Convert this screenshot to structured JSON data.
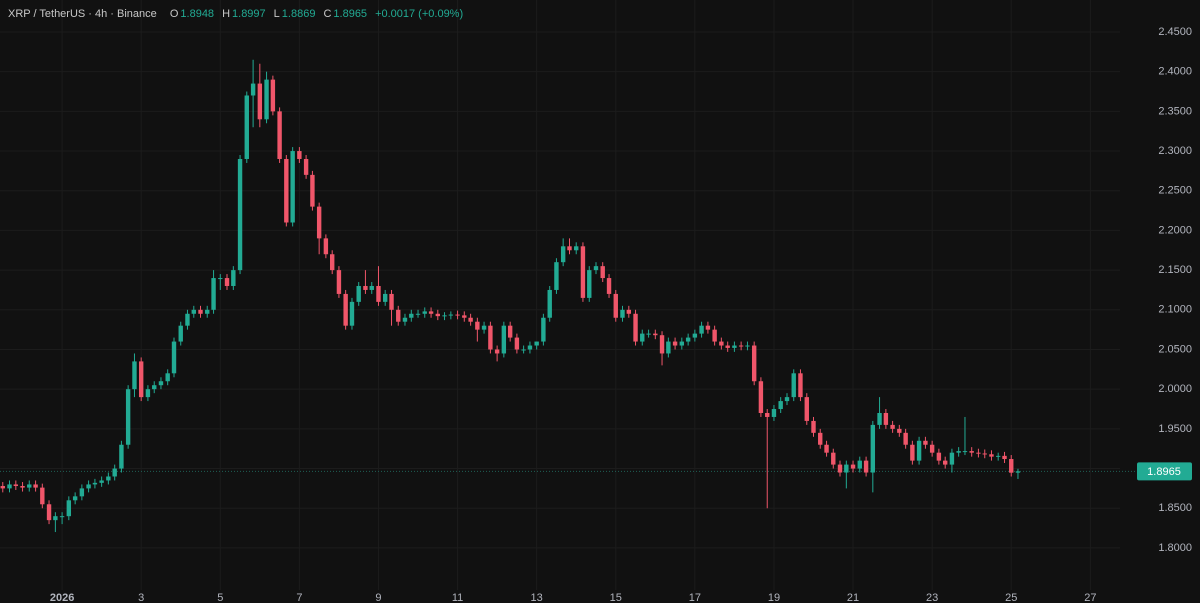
{
  "chart_data": {
    "type": "candlestick",
    "symbol": "XRP / TetherUS · 4h · Binance",
    "ohlc_legend": {
      "labels": [
        "O",
        "H",
        "L",
        "C"
      ],
      "values": [
        1.8948,
        1.8997,
        1.8869,
        1.8965
      ],
      "change": "+0.0017 (+0.09%)"
    },
    "x": [
      -0.5,
      -0.33,
      -0.17,
      0,
      0.17,
      0.33,
      0.5,
      0.67,
      0.83,
      1,
      1.17,
      1.33,
      1.5,
      1.67,
      1.83,
      2,
      2.17,
      2.33,
      2.5,
      2.67,
      2.83,
      3,
      3.17,
      3.33,
      3.5,
      3.67,
      3.83,
      4,
      4.17,
      4.33,
      4.5,
      4.67,
      4.83,
      5,
      5.17,
      5.33,
      5.5,
      5.67,
      5.83,
      6,
      6.17,
      6.33,
      6.5,
      6.67,
      6.83,
      7,
      7.17,
      7.33,
      7.5,
      7.67,
      7.83,
      8,
      8.17,
      8.33,
      8.5,
      8.67,
      8.83,
      9,
      9.17,
      9.33,
      9.5,
      9.67,
      9.83,
      10,
      10.17,
      10.33,
      10.5,
      10.67,
      10.83,
      11,
      11.17,
      11.33,
      11.5,
      11.67,
      11.83,
      12,
      12.17,
      12.33,
      12.5,
      12.67,
      12.83,
      13,
      13.17,
      13.33,
      13.5,
      13.67,
      13.83,
      14,
      14.17,
      14.33,
      14.5,
      14.67,
      14.83,
      15,
      15.17,
      15.33,
      15.5,
      15.67,
      15.83,
      16,
      16.17,
      16.33,
      16.5,
      16.67,
      16.83,
      17,
      17.17,
      17.33,
      17.5,
      17.67,
      17.83,
      18,
      18.17,
      18.33,
      18.5,
      18.67,
      18.83,
      19,
      19.17,
      19.33,
      19.5,
      19.67,
      19.83,
      20,
      20.17,
      20.33,
      20.5,
      20.67,
      20.83,
      21,
      21.17,
      21.33,
      21.5,
      21.67,
      21.83,
      22,
      22.17,
      22.33,
      22.5,
      22.67,
      22.83,
      23,
      23.17,
      23.33,
      23.5,
      23.67,
      23.83,
      24,
      24.17,
      24.33,
      24.5,
      24.67,
      24.83,
      25,
      25.17
    ],
    "series": [
      {
        "up_color": "#22ab94",
        "down_color": "#f0566a",
        "open": [
          1.878,
          1.875,
          1.88,
          1.878,
          1.876,
          1.88,
          1.876,
          1.855,
          1.835,
          1.84,
          1.84,
          1.86,
          1.865,
          1.875,
          1.88,
          1.882,
          1.885,
          1.89,
          1.9,
          1.93,
          2.0,
          2.035,
          1.99,
          2.0,
          2.005,
          2.01,
          2.02,
          2.06,
          2.08,
          2.095,
          2.1,
          2.095,
          2.1,
          2.14,
          2.14,
          2.13,
          2.15,
          2.29,
          2.37,
          2.385,
          2.34,
          2.39,
          2.35,
          2.29,
          2.21,
          2.3,
          2.29,
          2.27,
          2.23,
          2.19,
          2.17,
          2.15,
          2.12,
          2.08,
          2.11,
          2.13,
          2.125,
          2.13,
          2.11,
          2.12,
          2.1,
          2.085,
          2.09,
          2.095,
          2.095,
          2.098,
          2.095,
          2.092,
          2.093,
          2.094,
          2.093,
          2.09,
          2.085,
          2.075,
          2.08,
          2.05,
          2.045,
          2.08,
          2.065,
          2.05,
          2.05,
          2.055,
          2.06,
          2.09,
          2.125,
          2.16,
          2.18,
          2.175,
          2.18,
          2.115,
          2.15,
          2.155,
          2.14,
          2.12,
          2.09,
          2.1,
          2.095,
          2.06,
          2.07,
          2.07,
          2.068,
          2.045,
          2.06,
          2.055,
          2.06,
          2.065,
          2.07,
          2.08,
          2.075,
          2.06,
          2.055,
          2.052,
          2.055,
          2.054,
          2.055,
          2.01,
          1.97,
          1.965,
          1.975,
          1.985,
          1.99,
          2.02,
          1.99,
          1.96,
          1.945,
          1.93,
          1.92,
          1.905,
          1.895,
          1.905,
          1.9,
          1.91,
          1.895,
          1.955,
          1.97,
          1.955,
          1.95,
          1.945,
          1.93,
          1.91,
          1.935,
          1.93,
          1.92,
          1.91,
          1.905,
          1.92,
          1.922,
          1.922,
          1.92,
          1.919,
          1.918,
          1.915,
          1.916,
          1.912,
          1.8948
        ],
        "high": [
          1.883,
          1.885,
          1.885,
          1.883,
          1.885,
          1.885,
          1.881,
          1.86,
          1.845,
          1.845,
          1.865,
          1.87,
          1.88,
          1.885,
          1.887,
          1.89,
          1.895,
          1.905,
          1.935,
          2.005,
          2.045,
          2.04,
          2.005,
          2.01,
          2.015,
          2.025,
          2.065,
          2.085,
          2.1,
          2.105,
          2.105,
          2.105,
          2.15,
          2.145,
          2.145,
          2.155,
          2.295,
          2.375,
          2.415,
          2.41,
          2.4,
          2.395,
          2.355,
          2.295,
          2.305,
          2.305,
          2.295,
          2.275,
          2.235,
          2.195,
          2.175,
          2.155,
          2.125,
          2.115,
          2.135,
          2.15,
          2.135,
          2.155,
          2.125,
          2.125,
          2.105,
          2.095,
          2.1,
          2.1,
          2.103,
          2.103,
          2.1,
          2.097,
          2.098,
          2.099,
          2.098,
          2.095,
          2.09,
          2.085,
          2.085,
          2.055,
          2.085,
          2.085,
          2.07,
          2.055,
          2.06,
          2.06,
          2.095,
          2.13,
          2.165,
          2.19,
          2.19,
          2.185,
          2.185,
          2.155,
          2.16,
          2.16,
          2.145,
          2.125,
          2.105,
          2.105,
          2.1,
          2.075,
          2.075,
          2.075,
          2.073,
          2.065,
          2.065,
          2.065,
          2.07,
          2.075,
          2.085,
          2.085,
          2.08,
          2.065,
          2.06,
          2.06,
          2.06,
          2.06,
          2.06,
          2.015,
          1.975,
          1.98,
          1.99,
          1.995,
          2.025,
          2.025,
          1.995,
          1.965,
          1.95,
          1.935,
          1.925,
          1.91,
          1.91,
          1.91,
          1.915,
          1.915,
          1.96,
          1.99,
          1.975,
          1.96,
          1.955,
          1.95,
          1.935,
          1.94,
          1.94,
          1.935,
          1.925,
          1.915,
          1.925,
          1.927,
          1.965,
          1.927,
          1.925,
          1.924,
          1.923,
          1.92,
          1.921,
          1.917,
          1.8997
        ],
        "low": [
          1.87,
          1.87,
          1.873,
          1.871,
          1.871,
          1.871,
          1.85,
          1.83,
          1.82,
          1.83,
          1.835,
          1.855,
          1.86,
          1.87,
          1.875,
          1.877,
          1.88,
          1.885,
          1.895,
          1.925,
          1.99,
          1.985,
          1.985,
          1.995,
          2.0,
          2.005,
          2.015,
          2.055,
          2.075,
          2.09,
          2.09,
          2.09,
          2.095,
          2.125,
          2.125,
          2.125,
          2.145,
          2.285,
          2.33,
          2.33,
          2.335,
          2.345,
          2.285,
          2.205,
          2.205,
          2.285,
          2.265,
          2.225,
          2.17,
          2.165,
          2.145,
          2.115,
          2.075,
          2.075,
          2.105,
          2.12,
          2.12,
          2.105,
          2.105,
          2.08,
          2.08,
          2.08,
          2.085,
          2.09,
          2.09,
          2.09,
          2.087,
          2.087,
          2.088,
          2.088,
          2.085,
          2.08,
          2.06,
          2.07,
          2.045,
          2.035,
          2.04,
          2.06,
          2.045,
          2.045,
          2.045,
          2.05,
          2.055,
          2.085,
          2.12,
          2.155,
          2.17,
          2.17,
          2.11,
          2.11,
          2.145,
          2.135,
          2.115,
          2.085,
          2.085,
          2.09,
          2.055,
          2.055,
          2.065,
          2.063,
          2.03,
          2.04,
          2.05,
          2.05,
          2.055,
          2.06,
          2.065,
          2.07,
          2.055,
          2.05,
          2.047,
          2.047,
          2.049,
          2.049,
          2.005,
          1.965,
          1.85,
          1.96,
          1.97,
          1.98,
          1.985,
          1.985,
          1.955,
          1.94,
          1.925,
          1.915,
          1.9,
          1.89,
          1.875,
          1.895,
          1.895,
          1.89,
          1.87,
          1.95,
          1.95,
          1.945,
          1.94,
          1.925,
          1.905,
          1.905,
          1.925,
          1.915,
          1.905,
          1.9,
          1.895,
          1.915,
          1.917,
          1.915,
          1.914,
          1.913,
          1.91,
          1.91,
          1.907,
          1.89,
          1.8869
        ],
        "close": [
          1.875,
          1.88,
          1.878,
          1.876,
          1.88,
          1.876,
          1.855,
          1.835,
          1.84,
          1.84,
          1.86,
          1.865,
          1.875,
          1.88,
          1.882,
          1.885,
          1.89,
          1.9,
          1.93,
          2.0,
          2.035,
          1.99,
          2.0,
          2.005,
          2.01,
          2.02,
          2.06,
          2.08,
          2.095,
          2.1,
          2.095,
          2.1,
          2.14,
          2.14,
          2.13,
          2.15,
          2.29,
          2.37,
          2.385,
          2.34,
          2.39,
          2.35,
          2.29,
          2.21,
          2.3,
          2.29,
          2.27,
          2.23,
          2.19,
          2.17,
          2.15,
          2.12,
          2.08,
          2.11,
          2.13,
          2.125,
          2.13,
          2.11,
          2.12,
          2.1,
          2.085,
          2.09,
          2.095,
          2.095,
          2.098,
          2.095,
          2.092,
          2.093,
          2.094,
          2.093,
          2.09,
          2.085,
          2.075,
          2.08,
          2.05,
          2.045,
          2.08,
          2.065,
          2.05,
          2.05,
          2.055,
          2.06,
          2.09,
          2.125,
          2.16,
          2.18,
          2.175,
          2.18,
          2.115,
          2.15,
          2.155,
          2.14,
          2.12,
          2.09,
          2.1,
          2.095,
          2.06,
          2.07,
          2.07,
          2.068,
          2.045,
          2.06,
          2.055,
          2.06,
          2.065,
          2.07,
          2.08,
          2.075,
          2.06,
          2.055,
          2.052,
          2.055,
          2.054,
          2.055,
          2.01,
          1.97,
          1.965,
          1.975,
          1.985,
          1.99,
          2.02,
          1.99,
          1.96,
          1.945,
          1.93,
          1.92,
          1.905,
          1.895,
          1.905,
          1.9,
          1.91,
          1.895,
          1.955,
          1.97,
          1.955,
          1.95,
          1.945,
          1.93,
          1.91,
          1.935,
          1.93,
          1.92,
          1.91,
          1.905,
          1.92,
          1.922,
          1.922,
          1.92,
          1.919,
          1.918,
          1.915,
          1.916,
          1.912,
          1.8948,
          1.8965
        ]
      }
    ],
    "xlim": [
      -0.57,
      27.75
    ],
    "xticks": [
      {
        "value": 1,
        "label": "2026"
      },
      3,
      5,
      7,
      9,
      11,
      13,
      15,
      17,
      19,
      21,
      23,
      25,
      27
    ],
    "ylim": [
      1.747,
      2.4903
    ],
    "yticks": [
      {
        "value": 1.8,
        "label": "1.8000"
      },
      {
        "value": 1.85,
        "label": "1.8500"
      },
      {
        "value": 1.9,
        "label": "1.9000"
      },
      {
        "value": 1.95,
        "label": "1.9500"
      },
      {
        "value": 2.0,
        "label": "2.0000"
      },
      {
        "value": 2.05,
        "label": "2.0500"
      },
      {
        "value": 2.1,
        "label": "2.1000"
      },
      {
        "value": 2.15,
        "label": "2.1500"
      },
      {
        "value": 2.2,
        "label": "2.2000"
      },
      {
        "value": 2.25,
        "label": "2.2500"
      },
      {
        "value": 2.3,
        "label": "2.3000"
      },
      {
        "value": 2.35,
        "label": "2.3500"
      },
      {
        "value": 2.4,
        "label": "2.4000"
      },
      {
        "value": 2.45,
        "label": "2.4500"
      }
    ],
    "last_price": 1.8965,
    "grid": true
  }
}
